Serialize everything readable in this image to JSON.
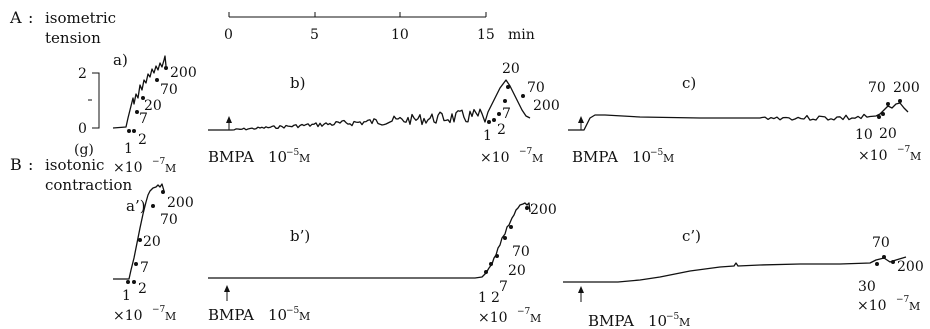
{
  "sections": {
    "A": {
      "letter": "A",
      "line1": "isometric",
      "line2": "tension"
    },
    "B": {
      "letter": "B",
      "line1": "isotonic",
      "line2": "contraction"
    }
  },
  "time_scale": {
    "ticks": [
      "0",
      "5",
      "10",
      "15"
    ],
    "unit": "min"
  },
  "force_scale": {
    "top": "2",
    "bottom": "0",
    "unit": "(g)"
  },
  "panels": {
    "a": {
      "label": "a)",
      "doses": [
        "1",
        "2",
        "7",
        "20",
        "70",
        "200"
      ]
    },
    "b": {
      "label": "b)",
      "doses": [
        "1",
        "2",
        "7",
        "20",
        "70",
        "200"
      ]
    },
    "c": {
      "label": "c)",
      "doses": [
        "10",
        "20",
        "70",
        "200"
      ]
    },
    "a2": {
      "label": "a’)",
      "doses": [
        "1",
        "2",
        "7",
        "20",
        "70",
        "200"
      ]
    },
    "b2": {
      "label": "b’)",
      "doses": [
        "1",
        "2",
        "7",
        "20",
        "70",
        "200"
      ]
    },
    "c2": {
      "label": "c’)",
      "doses": [
        "30",
        "70",
        "200"
      ]
    }
  },
  "concentration_unit": {
    "prefix": "×10",
    "exponent": "−7",
    "unit": "M"
  },
  "bmpa": {
    "name": "BMPA",
    "base": "10",
    "exponent": "−5",
    "unit": "M"
  }
}
